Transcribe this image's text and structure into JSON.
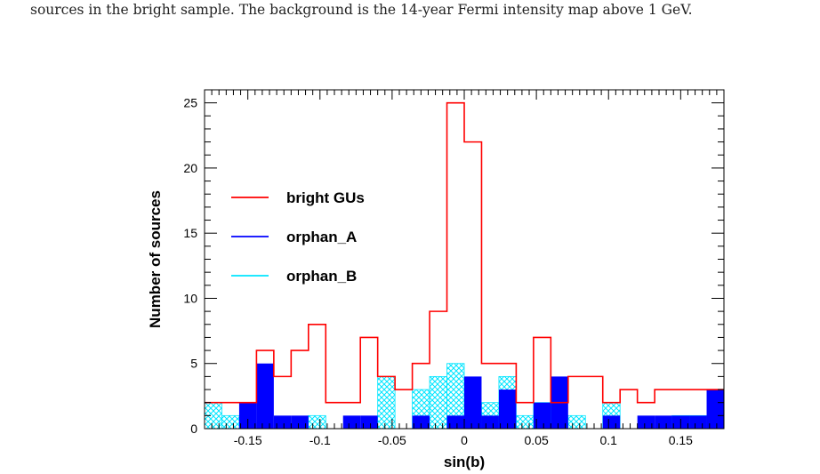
{
  "caption": "sources in the bright sample. The background is the 14-year Fermi intensity map above 1 GeV.",
  "chart_data": {
    "type": "bar",
    "subtype": "stacked-histogram",
    "xlabel": "sin(b)",
    "ylabel": "Number of sources",
    "xlim": [
      -0.18,
      0.18
    ],
    "ylim": [
      0,
      26
    ],
    "xticks": [
      "-0.15",
      "-0.1",
      "-0.05",
      "0",
      "0.05",
      "0.1",
      "0.15"
    ],
    "xtick_values": [
      -0.15,
      -0.1,
      -0.05,
      0,
      0.05,
      0.1,
      0.15
    ],
    "yticks": [
      "0",
      "5",
      "10",
      "15",
      "20",
      "25"
    ],
    "ytick_values": [
      0,
      5,
      10,
      15,
      20,
      25
    ],
    "bin_edges": [
      -0.18,
      -0.168,
      -0.156,
      -0.144,
      -0.132,
      -0.12,
      -0.108,
      -0.096,
      -0.084,
      -0.072,
      -0.06,
      -0.048,
      -0.036,
      -0.024,
      -0.012,
      0,
      0.012,
      0.024,
      0.036,
      0.048,
      0.06,
      0.072,
      0.084,
      0.096,
      0.108,
      0.12,
      0.132,
      0.144,
      0.156,
      0.168,
      0.18
    ],
    "legend_position": "upper-left",
    "series": [
      {
        "name": "bright GUs",
        "color": "#ff0000",
        "style": "step",
        "values": [
          2,
          2,
          2,
          6,
          4,
          6,
          8,
          2,
          2,
          7,
          4,
          3,
          5,
          9,
          25,
          22,
          5,
          5,
          2,
          7,
          2,
          4,
          4,
          2,
          3,
          2,
          3,
          3,
          3,
          3
        ]
      },
      {
        "name": "orphan_A",
        "color": "#0000ff",
        "style": "filled",
        "values": [
          0,
          0,
          2,
          5,
          1,
          1,
          0,
          0,
          1,
          1,
          0,
          0,
          1,
          0,
          1,
          4,
          1,
          3,
          0,
          2,
          4,
          0,
          0,
          1,
          0,
          1,
          1,
          1,
          1,
          3
        ]
      },
      {
        "name": "orphan_B",
        "color": "#00e5ff",
        "style": "hatched",
        "values": [
          2,
          1,
          0,
          0,
          0,
          0,
          1,
          0,
          0,
          0,
          4,
          0,
          3,
          4,
          5,
          1,
          2,
          4,
          1,
          2,
          1,
          1,
          0,
          2,
          0,
          0,
          0,
          1,
          1,
          0
        ]
      }
    ]
  }
}
